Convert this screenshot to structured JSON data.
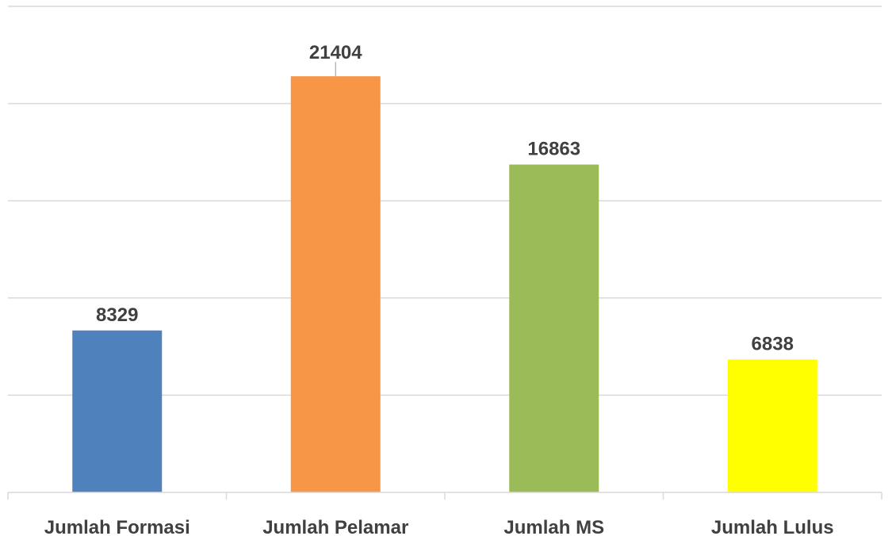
{
  "chart_data": {
    "type": "bar",
    "categories": [
      "Jumlah Formasi",
      "Jumlah Pelamar",
      "Jumlah MS",
      "Jumlah Lulus"
    ],
    "values": [
      8329,
      21404,
      16863,
      6838
    ],
    "data_labels": [
      "8329",
      "21404",
      "16863",
      "6838"
    ],
    "colors": [
      "#4f81bd",
      "#f79646",
      "#9bbb59",
      "#ffff00"
    ],
    "title": "",
    "xlabel": "",
    "ylabel": "",
    "ylim": [
      0,
      25000
    ],
    "grid": true,
    "legend": "none",
    "tick_labels_visible": false
  }
}
